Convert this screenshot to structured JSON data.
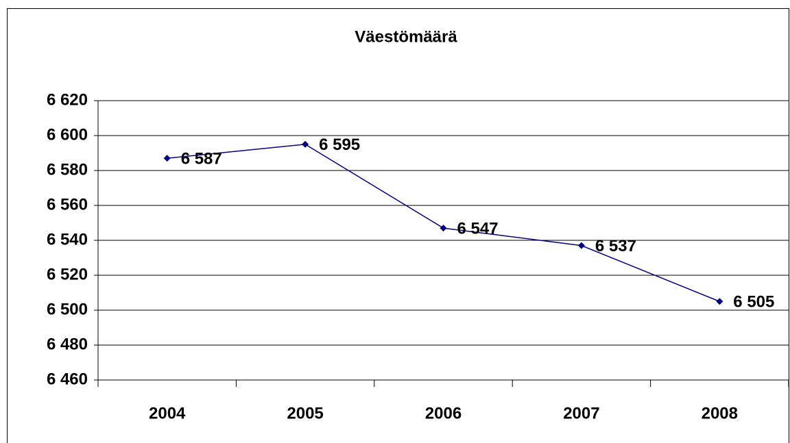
{
  "chart_data": {
    "type": "line",
    "title": "Väestömäärä",
    "categories": [
      "2004",
      "2005",
      "2006",
      "2007",
      "2008"
    ],
    "series": [
      {
        "name": "Väestömäärä",
        "color": "#000080",
        "values": [
          6587,
          6595,
          6547,
          6537,
          6505
        ],
        "value_labels": [
          "6 587",
          "6 595",
          "6 547",
          "6 537",
          "6 505"
        ]
      }
    ],
    "ylim": [
      6460,
      6620
    ],
    "yticks": [
      {
        "value": 6460,
        "label": "6 460"
      },
      {
        "value": 6480,
        "label": "6 480"
      },
      {
        "value": 6500,
        "label": "6 500"
      },
      {
        "value": 6520,
        "label": "6 520"
      },
      {
        "value": 6540,
        "label": "6 540"
      },
      {
        "value": 6560,
        "label": "6 560"
      },
      {
        "value": 6580,
        "label": "6 580"
      },
      {
        "value": 6600,
        "label": "6 600"
      },
      {
        "value": 6620,
        "label": "6 620"
      }
    ],
    "grid": true
  }
}
